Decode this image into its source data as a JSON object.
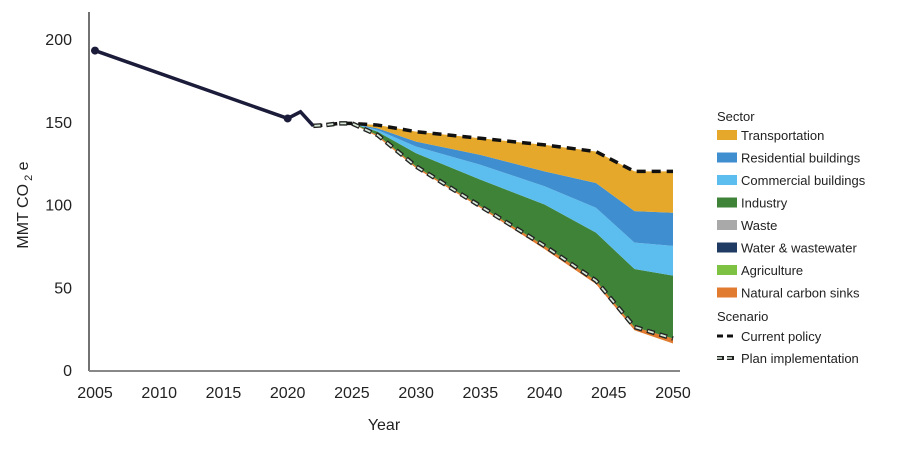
{
  "chart_data": {
    "type": "area",
    "title": "",
    "xlabel": "Year",
    "ylabel": "MMT CO",
    "ylabel_sub": "2",
    "ylabel_suffix": "e",
    "xlim": [
      2005,
      2050
    ],
    "ylim": [
      0,
      200
    ],
    "xticks": [
      2005,
      2010,
      2015,
      2020,
      2025,
      2030,
      2035,
      2040,
      2045,
      2050
    ],
    "yticks": [
      0,
      50,
      100,
      150,
      200
    ],
    "grid": false,
    "legend_placement": "right",
    "historical": {
      "x": [
        2005,
        2020,
        2021,
        2022
      ],
      "y": [
        193,
        152,
        156,
        147.5
      ],
      "color": "#1b1b3a"
    },
    "projection_years": [
      2022,
      2023,
      2024,
      2025,
      2027,
      2030,
      2035,
      2040,
      2044,
      2047,
      2050
    ],
    "legend_sector_title": "Sector",
    "sectors": [
      {
        "name": "Transportation",
        "color": "#E6A82A",
        "values": [
          0,
          0,
          0,
          0,
          2,
          6,
          10,
          16,
          19,
          24,
          25
        ]
      },
      {
        "name": "Residential buildings",
        "color": "#3F8ED0",
        "values": [
          0,
          0,
          0,
          0,
          1,
          3,
          6,
          9,
          15,
          19,
          20
        ]
      },
      {
        "name": "Commercial buildings",
        "color": "#5BBEEE",
        "values": [
          0,
          0,
          0,
          0,
          1,
          4,
          9,
          11,
          15,
          16,
          18
        ]
      },
      {
        "name": "Industry",
        "color": "#3E8338",
        "values": [
          0,
          0,
          0,
          0,
          2,
          8,
          16,
          25,
          29,
          35,
          38
        ]
      },
      {
        "name": "Waste",
        "color": "#A9A9A9",
        "values": [
          0,
          0,
          0,
          0,
          0,
          0,
          0,
          0,
          0,
          0,
          0
        ]
      },
      {
        "name": "Water & wastewater",
        "color": "#1F3B63",
        "values": [
          0,
          0,
          0,
          0,
          0,
          0,
          0,
          0,
          0,
          0,
          0
        ]
      },
      {
        "name": "Agriculture",
        "color": "#7DC242",
        "values": [
          0,
          0,
          0,
          0,
          0,
          0,
          0,
          0,
          0,
          0,
          0
        ]
      },
      {
        "name": "Natural carbon sinks",
        "color": "#E07B30",
        "values": [
          0,
          0,
          0,
          0,
          -1,
          -1,
          -1,
          -2,
          -2,
          -2,
          -3
        ]
      }
    ],
    "legend_scenario_title": "Scenario",
    "scenarios": [
      {
        "name": "Current policy",
        "style": "dashed",
        "values": [
          147.5,
          148,
          149,
          149,
          148,
          144,
          140,
          136,
          132,
          120,
          120
        ]
      },
      {
        "name": "Plan implementation",
        "style": "hollow-dashed",
        "values": [
          147.5,
          148,
          149,
          149,
          142,
          123,
          99,
          75,
          54,
          26,
          19
        ]
      }
    ]
  }
}
